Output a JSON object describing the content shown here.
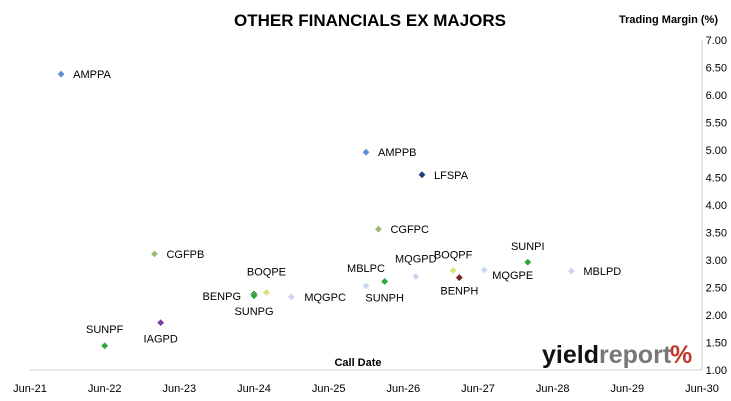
{
  "chart_data": {
    "type": "scatter",
    "title": "OTHER FINANCIALS EX MAJORS",
    "xlabel": "Call Date",
    "ylabel": "Trading Margin (%)",
    "x_ticks": [
      "Jun-21",
      "Jun-22",
      "Jun-23",
      "Jun-24",
      "Jun-25",
      "Jun-26",
      "Jun-27",
      "Jun-28",
      "Jun-29",
      "Jun-30"
    ],
    "y_ticks": [
      "1.00",
      "1.50",
      "2.00",
      "2.50",
      "3.00",
      "3.50",
      "4.00",
      "4.50",
      "5.00",
      "5.50",
      "6.00",
      "6.50",
      "7.00"
    ],
    "xlim": [
      "2021-06",
      "2030-06"
    ],
    "ylim": [
      1.0,
      7.0
    ],
    "y_axis_position": "right",
    "grid": false,
    "points": [
      {
        "label": "AMPPA",
        "x": "2021-11",
        "y": 6.38,
        "color": "#5b8fd1"
      },
      {
        "label": "AMPPB",
        "x": "2025-12",
        "y": 4.96,
        "color": "#5b8fd1"
      },
      {
        "label": "LFSPA",
        "x": "2026-09",
        "y": 4.55,
        "color": "#1f3f73"
      },
      {
        "label": "CGFPC",
        "x": "2026-02",
        "y": 3.56,
        "color": "#9bbb78"
      },
      {
        "label": "CGFPB",
        "x": "2023-02",
        "y": 3.11,
        "color": "#9bbb78"
      },
      {
        "label": "SUNPI",
        "x": "2028-02",
        "y": 2.96,
        "color": "#2aa83a"
      },
      {
        "label": "BOQPF",
        "x": "2027-02",
        "y": 2.81,
        "color": "#d9e07c"
      },
      {
        "label": "MQGPE",
        "x": "2027-07",
        "y": 2.82,
        "color": "#c9d7ee"
      },
      {
        "label": "MBLPD",
        "x": "2028-09",
        "y": 2.8,
        "color": "#c9d7ee"
      },
      {
        "label": "MQGPD",
        "x": "2026-08",
        "y": 2.7,
        "color": "#c9d7ee"
      },
      {
        "label": "BENPH",
        "x": "2027-03",
        "y": 2.68,
        "color": "#7a1f1f"
      },
      {
        "label": "SUNPH",
        "x": "2026-03",
        "y": 2.61,
        "color": "#2aa83a"
      },
      {
        "label": "MBLPC",
        "x": "2025-12",
        "y": 2.53,
        "color": "#c9d7ee"
      },
      {
        "label": "BOQPE",
        "x": "2024-08",
        "y": 2.41,
        "color": "#d9e07c"
      },
      {
        "label": "BENPG",
        "x": "2024-06",
        "y": 2.38,
        "color": "#1f5f2f"
      },
      {
        "label": "SUNPG",
        "x": "2024-06",
        "y": 2.35,
        "color": "#2aa83a"
      },
      {
        "label": "MQGPC",
        "x": "2024-12",
        "y": 2.33,
        "color": "#c9d7ee"
      },
      {
        "label": "IAGPD",
        "x": "2023-03",
        "y": 1.86,
        "color": "#7b3fa3"
      },
      {
        "label": "SUNPF",
        "x": "2022-06",
        "y": 1.44,
        "color": "#2aa83a"
      }
    ]
  },
  "branding": {
    "logo_word1": "yield",
    "logo_word2": "report",
    "logo_symbol": "%",
    "colors": {
      "dark": "#111111",
      "mid": "#777777",
      "accent": "#c0392b",
      "symbol_top": "#c0392b",
      "symbol_bottom": "#2a9d3a"
    }
  }
}
